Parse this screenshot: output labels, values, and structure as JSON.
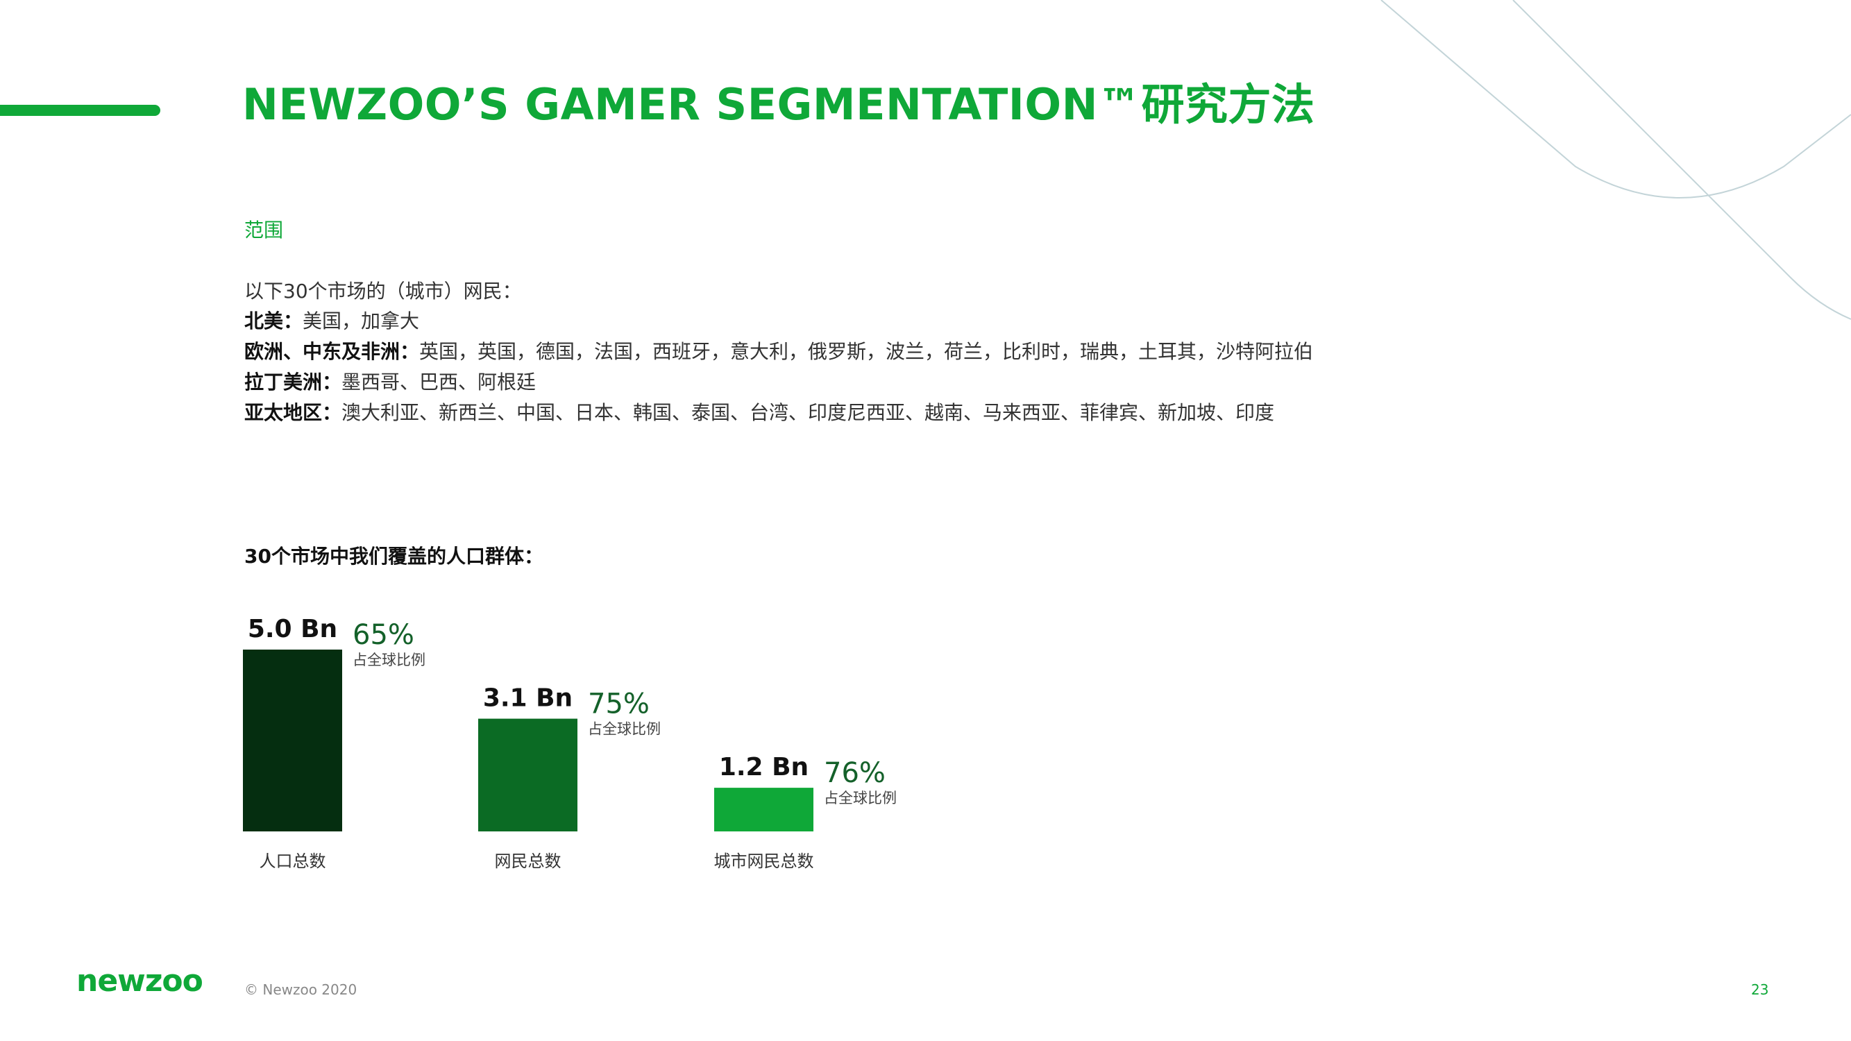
{
  "title": "NEWZOO’S GAMER SEGMENTATION™研究方法",
  "section_label": "范围",
  "intro": "以下30个市场的（城市）网民：",
  "regions": [
    {
      "name": "北美：",
      "markets": "美国，加拿大"
    },
    {
      "name": "欧洲、中东及非洲：",
      "markets": "英国，英国，德国，法国，西班牙，意大利，俄罗斯，波兰，荷兰，比利时，瑞典，土耳其，沙特阿拉伯"
    },
    {
      "name": "拉丁美洲：",
      "markets": "墨西哥、巴西、阿根廷"
    },
    {
      "name": "亚太地区：",
      "markets": "澳大利亚、新西兰、中国、日本、韩国、泰国、台湾、印度尼西亚、越南、马来西亚、菲律宾、新加坡、印度"
    }
  ],
  "chart_title": "30个市场中我们覆盖的人口群体：",
  "chart_data": {
    "type": "bar",
    "categories": [
      "人口总数",
      "网民总数",
      "城市网民总数"
    ],
    "values": [
      5.0,
      3.1,
      1.2
    ],
    "value_labels": [
      "5.0 Bn",
      "3.1 Bn",
      "1.2 Bn"
    ],
    "shares": [
      "65%",
      "75%",
      "76%"
    ],
    "share_caption": "占全球比例",
    "colors": [
      "#052e10",
      "#0b6b24",
      "#0fa838"
    ],
    "ylim": [
      0,
      5.0
    ]
  },
  "footer": {
    "logo": "newzoo",
    "copyright": "© Newzoo 2020",
    "page_number": "23"
  },
  "colors": {
    "brand_green": "#0fa838",
    "deco_line": "#c3d4d8"
  }
}
